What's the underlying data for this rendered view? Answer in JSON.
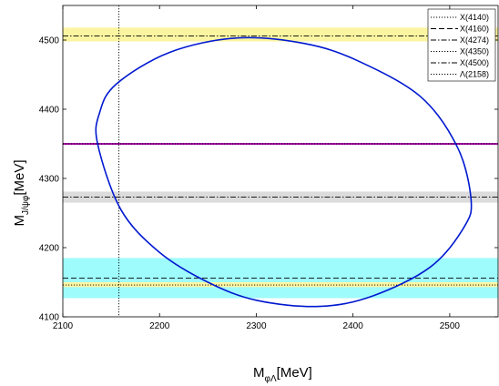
{
  "chart_data": {
    "type": "line",
    "xlim": [
      2100,
      2550
    ],
    "ylim": [
      4100,
      4550
    ],
    "x_ticks": [
      2100,
      2200,
      2300,
      2400,
      2500
    ],
    "y_ticks": [
      4100,
      4200,
      4300,
      4400,
      4500
    ],
    "xlabel": {
      "main": "M",
      "sub": "φΛ",
      "unit": "[MeV]"
    },
    "ylabel": {
      "main": "M",
      "sub": "J/ψφ",
      "unit": "[MeV]"
    },
    "legend_position": "top-right",
    "bands": [
      {
        "y_min": 4127,
        "y_max": 4185,
        "color": "#9ffcfc"
      },
      {
        "y_min": 4265,
        "y_max": 4281,
        "color": "#dcdcdc"
      },
      {
        "y_min": 4498,
        "y_max": 4518,
        "color": "#fbf5a2"
      },
      {
        "y_min": 4143,
        "y_max": 4150,
        "color": "#fbf5a2"
      }
    ],
    "series": [
      {
        "name": "X(4140)",
        "orientation": "horizontal",
        "value": 4146,
        "dash": "1.2 1.8",
        "color": "#000000"
      },
      {
        "name": "X(4160)",
        "orientation": "horizontal",
        "value": 4156,
        "dash": "6 3",
        "color": "#000000"
      },
      {
        "name": "X(4274)",
        "orientation": "horizontal",
        "value": 4273,
        "dash": "6 2 1.5 2",
        "color": "#000000"
      },
      {
        "name": "X(4350)",
        "orientation": "horizontal",
        "value": 4350,
        "dash": "1.2 1.8",
        "color": "#000000",
        "overlay_color": "#b000b0"
      },
      {
        "name": "X(4500)",
        "orientation": "horizontal",
        "value": 4506,
        "dash": "6 2 1.5 2",
        "color": "#000000"
      },
      {
        "name": "Λ(2158)",
        "orientation": "vertical",
        "value": 2158,
        "dash": "1.2 1.8",
        "color": "#000000"
      }
    ],
    "ellipse": {
      "color": "#0018d0",
      "points": [
        [
          2136,
          4350
        ],
        [
          2160,
          4255
        ],
        [
          2200,
          4193
        ],
        [
          2250,
          4150
        ],
        [
          2300,
          4124
        ],
        [
          2365,
          4115
        ],
        [
          2420,
          4130
        ],
        [
          2480,
          4172
        ],
        [
          2515,
          4230
        ],
        [
          2522,
          4270
        ],
        [
          2508,
          4345
        ],
        [
          2470,
          4418
        ],
        [
          2405,
          4470
        ],
        [
          2350,
          4495
        ],
        [
          2280,
          4503
        ],
        [
          2210,
          4482
        ],
        [
          2155,
          4436
        ],
        [
          2138,
          4395
        ]
      ]
    }
  }
}
